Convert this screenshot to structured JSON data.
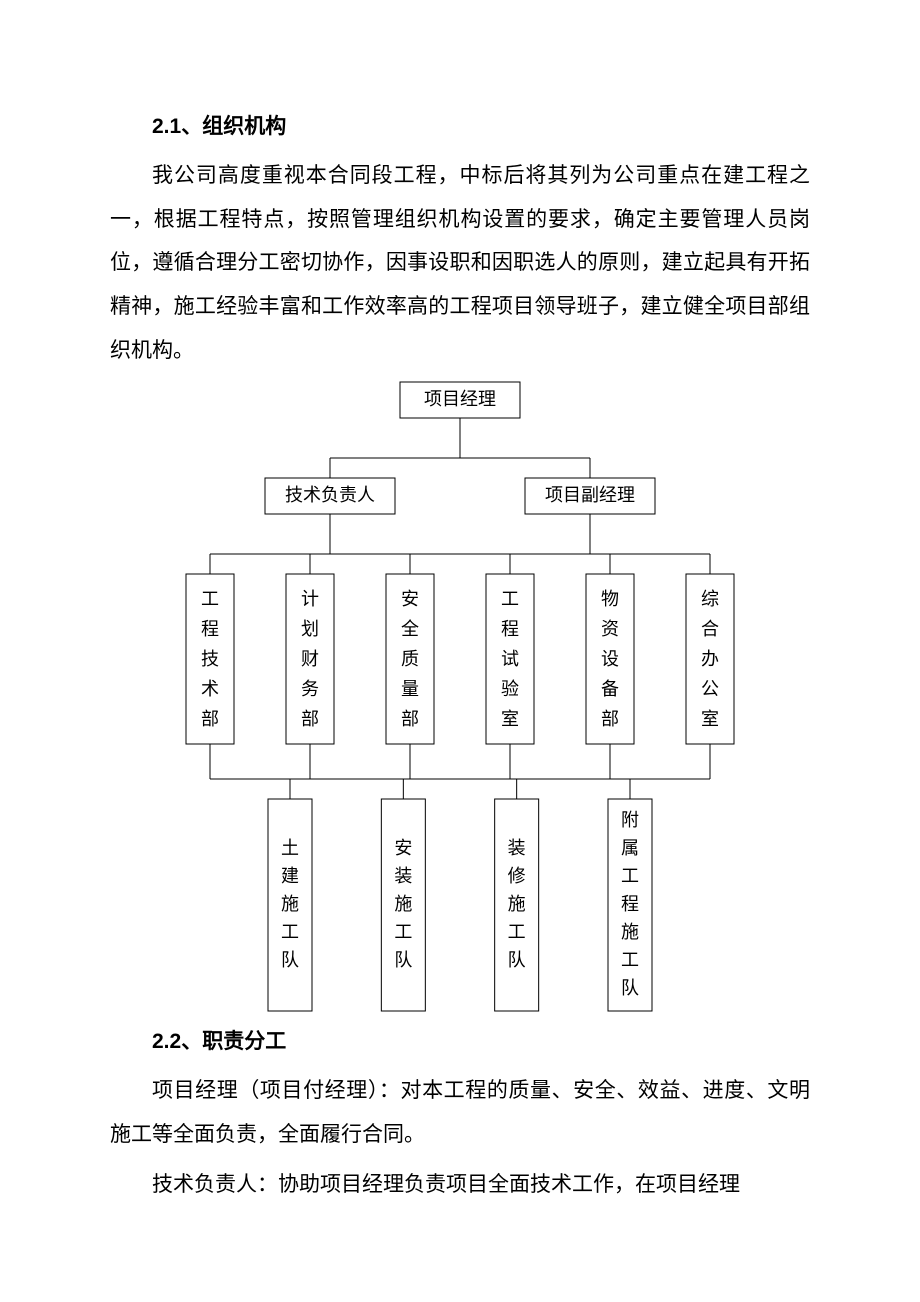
{
  "section1": {
    "heading": "2.1、组织机构",
    "paragraph": "我公司高度重视本合同段工程，中标后将其列为公司重点在建工程之一，根据工程特点，按照管理组织机构设置的要求，确定主要管理人员岗位，遵循合理分工密切协作，因事设职和因职选人的原则，建立起具有开拓精神，施工经验丰富和工作效率高的工程项目领导班子，建立健全项目部组织机构。"
  },
  "orgchart": {
    "type": "tree",
    "stroke": "#000000",
    "stroke_width": 1,
    "bg": "#ffffff",
    "fontsize": 18,
    "levels": [
      {
        "orientation": "horizontal",
        "nodes": [
          {
            "id": "pm",
            "label": "项目经理"
          }
        ]
      },
      {
        "orientation": "horizontal",
        "nodes": [
          {
            "id": "tech_lead",
            "label": "技术负责人"
          },
          {
            "id": "deputy_pm",
            "label": "项目副经理"
          }
        ]
      },
      {
        "orientation": "vertical",
        "nodes": [
          {
            "id": "d1",
            "label": "工程技术部"
          },
          {
            "id": "d2",
            "label": "计划财务部"
          },
          {
            "id": "d3",
            "label": "安全质量部"
          },
          {
            "id": "d4",
            "label": "工程试验室"
          },
          {
            "id": "d5",
            "label": "物资设备部"
          },
          {
            "id": "d6",
            "label": "综合办公室"
          }
        ]
      },
      {
        "orientation": "vertical",
        "nodes": [
          {
            "id": "t1",
            "label": "土建施工队"
          },
          {
            "id": "t2",
            "label": "安装施工队"
          },
          {
            "id": "t3",
            "label": "装修施工队"
          },
          {
            "id": "t4",
            "label": "附属工程施工队"
          }
        ]
      }
    ]
  },
  "section2": {
    "heading": "2.2、职责分工",
    "p1": "项目经理（项目付经理）：对本工程的质量、安全、效益、进度、文明施工等全面负责，全面履行合同。",
    "p2": "技术负责人：协助项目经理负责项目全面技术工作，在项目经理"
  }
}
